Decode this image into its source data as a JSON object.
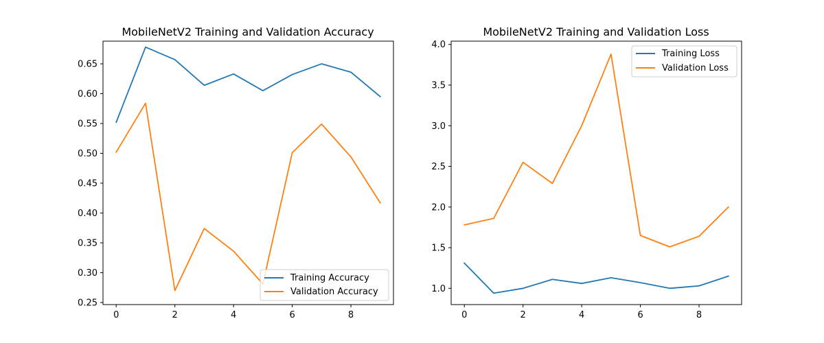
{
  "chart_data": [
    {
      "type": "line",
      "title": "MobileNetV2 Training and Validation Accuracy",
      "xlabel": "",
      "ylabel": "",
      "x": [
        0,
        1,
        2,
        3,
        4,
        5,
        6,
        7,
        8,
        9
      ],
      "xlim": [
        -0.45,
        9.45
      ],
      "ylim": [
        0.2465,
        0.688
      ],
      "xticks": [
        0,
        2,
        4,
        6,
        8
      ],
      "yticks": [
        0.25,
        0.3,
        0.35,
        0.4,
        0.45,
        0.5,
        0.55,
        0.6,
        0.65
      ],
      "ytick_labels": [
        "0.25",
        "0.30",
        "0.35",
        "0.40",
        "0.45",
        "0.50",
        "0.55",
        "0.60",
        "0.65"
      ],
      "grid": false,
      "legend_position": "lower-right",
      "series": [
        {
          "name": "Training Accuracy",
          "color": "#1f77b4",
          "values": [
            0.552,
            0.678,
            0.657,
            0.614,
            0.633,
            0.605,
            0.632,
            0.65,
            0.636,
            0.595
          ]
        },
        {
          "name": "Validation Accuracy",
          "color": "#ff7f0e",
          "values": [
            0.502,
            0.584,
            0.27,
            0.374,
            0.336,
            0.281,
            0.501,
            0.549,
            0.494,
            0.417
          ]
        }
      ]
    },
    {
      "type": "line",
      "title": "MobileNetV2 Training and Validation Loss",
      "xlabel": "",
      "ylabel": "",
      "x": [
        0,
        1,
        2,
        3,
        4,
        5,
        6,
        7,
        8,
        9
      ],
      "xlim": [
        -0.45,
        9.45
      ],
      "ylim": [
        0.8,
        4.04
      ],
      "xticks": [
        0,
        2,
        4,
        6,
        8
      ],
      "yticks": [
        1.0,
        1.5,
        2.0,
        2.5,
        3.0,
        3.5,
        4.0
      ],
      "ytick_labels": [
        "1.0",
        "1.5",
        "2.0",
        "2.5",
        "3.0",
        "3.5",
        "4.0"
      ],
      "grid": false,
      "legend_position": "upper-right",
      "series": [
        {
          "name": "Training Loss",
          "color": "#1f77b4",
          "values": [
            1.31,
            0.94,
            1.0,
            1.11,
            1.06,
            1.13,
            1.07,
            1.0,
            1.03,
            1.15
          ]
        },
        {
          "name": "Validation Loss",
          "color": "#ff7f0e",
          "values": [
            1.78,
            1.86,
            2.55,
            2.29,
            3.0,
            3.88,
            1.65,
            1.51,
            1.64,
            2.0
          ]
        }
      ]
    }
  ]
}
